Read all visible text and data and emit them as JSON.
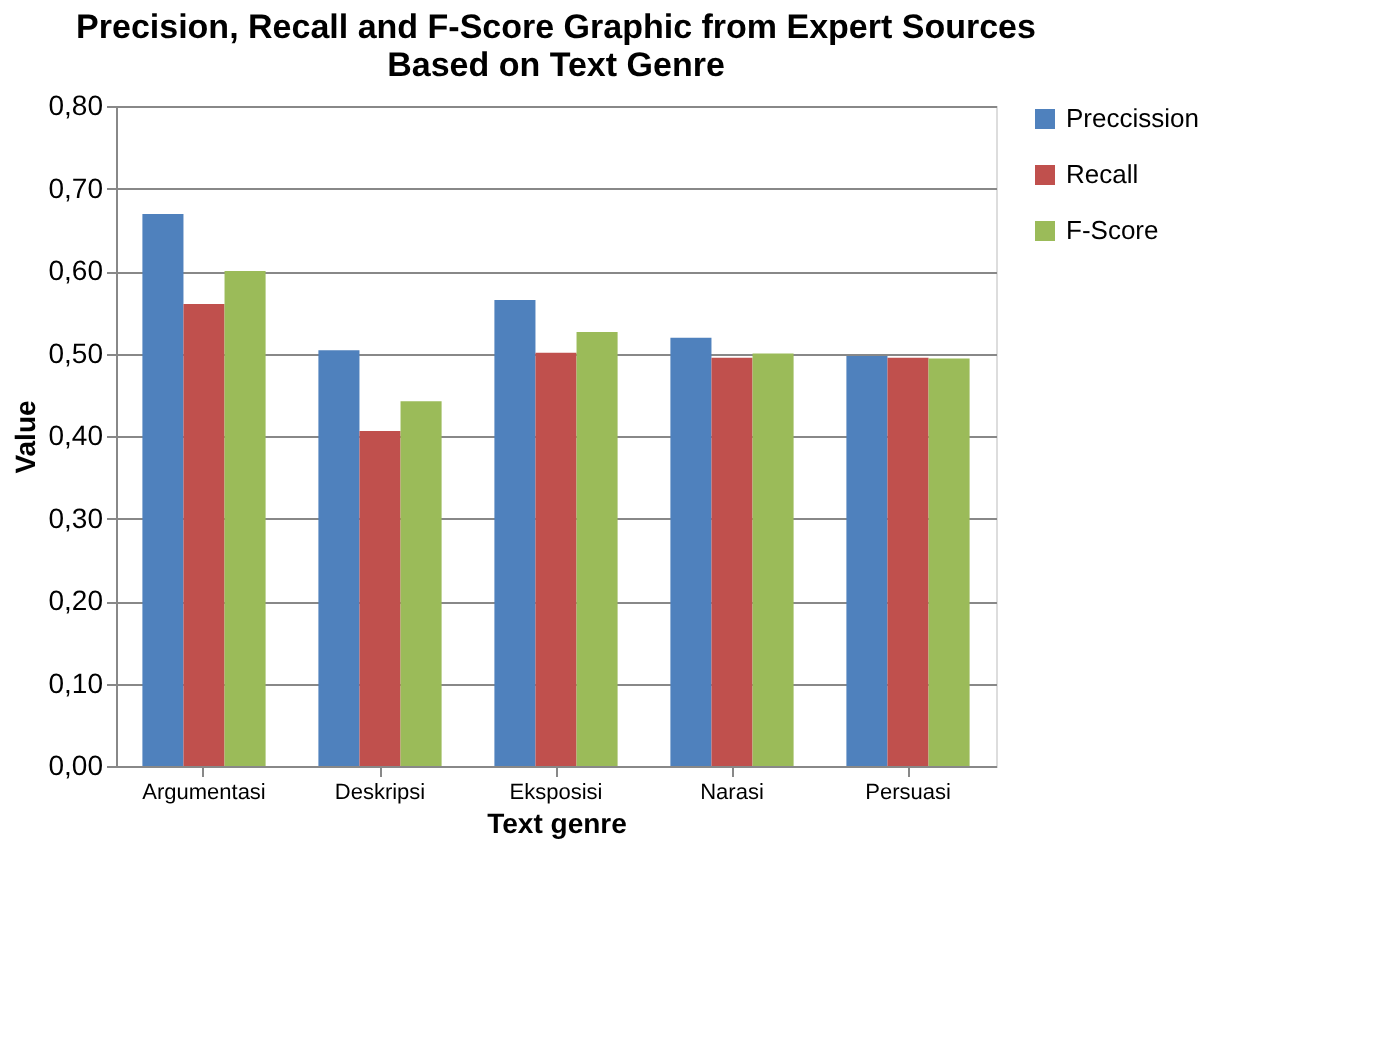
{
  "chart_data": {
    "type": "bar",
    "title": "Precision, Recall and F-Score Graphic from Expert Sources\nBased on Text Genre",
    "xlabel": "Text genre",
    "ylabel": "Value",
    "categories": [
      "Argumentasi",
      "Deskripsi",
      "Eksposisi",
      "Narasi",
      "Persuasi"
    ],
    "series": [
      {
        "name": "Preccission",
        "color": "#4f81bd",
        "values": [
          0.669,
          0.504,
          0.565,
          0.519,
          0.497
        ]
      },
      {
        "name": "Recall",
        "color": "#c0504d",
        "values": [
          0.56,
          0.406,
          0.501,
          0.495,
          0.495
        ]
      },
      {
        "name": "F-Score",
        "color": "#9bbb59",
        "values": [
          0.6,
          0.442,
          0.526,
          0.5,
          0.494
        ]
      }
    ],
    "ylim": [
      0,
      0.8
    ],
    "yticks": [
      {
        "value": 0,
        "label": "0,00"
      },
      {
        "value": 0.1,
        "label": "0,10"
      },
      {
        "value": 0.2,
        "label": "0,20"
      },
      {
        "value": 0.3,
        "label": "0,30"
      },
      {
        "value": 0.4,
        "label": "0,40"
      },
      {
        "value": 0.5,
        "label": "0,50"
      },
      {
        "value": 0.6,
        "label": "0,60"
      },
      {
        "value": 0.7,
        "label": "0,70"
      },
      {
        "value": 0.8,
        "label": "0,80"
      }
    ],
    "grid": "y",
    "legend": "right"
  }
}
